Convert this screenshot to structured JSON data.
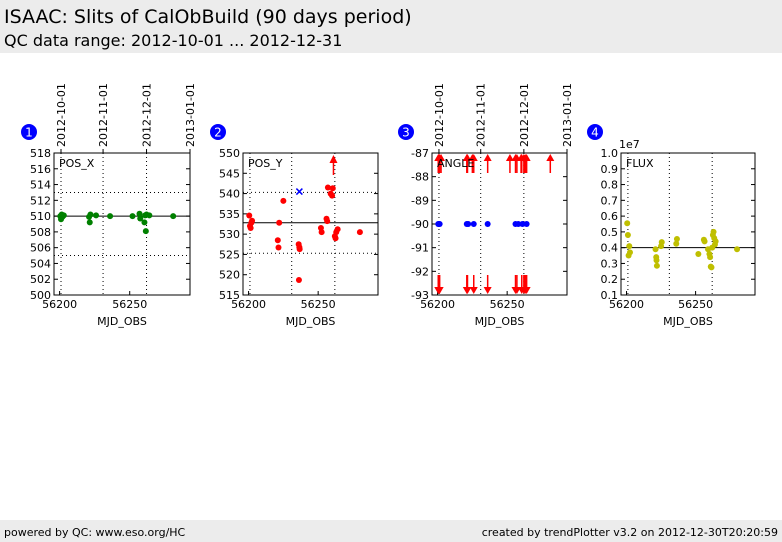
{
  "header": {
    "title": "ISAAC: Slits of CalObBuild (90 days period)",
    "subtitle": "QC data range: 2012-10-01 ... 2012-12-31"
  },
  "footer": {
    "left": "powered by QC: www.eso.org/HC",
    "right": "created by trendPlotter v3.2 on 2012-12-30T20:20:59"
  },
  "colors": {
    "pos_x": "#008000",
    "pos_y": "#ff0000",
    "angle": "#0000ff",
    "angle_limit": "#ff0000",
    "flux": "#bfbf00",
    "badge": "#0000ff",
    "header_bg": "#ececec"
  },
  "chart_data": [
    {
      "type": "scatter",
      "panel_number": "1",
      "label": "POS_X",
      "xlabel": "MJD_OBS",
      "xlim": [
        56196,
        56293
      ],
      "xticks": [
        "56200",
        "56250"
      ],
      "top_date_ticks": [
        {
          "x": 56201,
          "label": "2012-10-01"
        },
        {
          "x": 56231,
          "label": "2012-11-01"
        },
        {
          "x": 56262,
          "label": "2012-12-01"
        },
        {
          "x": 56293,
          "label": "2013-01-01"
        }
      ],
      "ylim": [
        500,
        518
      ],
      "yticks": [
        "500",
        "502",
        "504",
        "506",
        "508",
        "510",
        "512",
        "514",
        "516",
        "518"
      ],
      "reference_line": 510,
      "threshold_lines": [
        505,
        513
      ],
      "color": "#008000",
      "points": [
        [
          56200.5,
          510.0
        ],
        [
          56201,
          509.6
        ],
        [
          56201.5,
          510.2
        ],
        [
          56202,
          509.9
        ],
        [
          56203,
          510.1
        ],
        [
          56221,
          509.9
        ],
        [
          56221.5,
          509.2
        ],
        [
          56222,
          510.2
        ],
        [
          56226,
          510.1
        ],
        [
          56236,
          510.0
        ],
        [
          56252,
          510.0
        ],
        [
          56257,
          510.3
        ],
        [
          56257.5,
          509.7
        ],
        [
          56260.5,
          509.2
        ],
        [
          56261,
          510.1
        ],
        [
          56261.5,
          508.1
        ],
        [
          56262,
          510.2
        ],
        [
          56264,
          510.1
        ],
        [
          56281,
          510.0
        ]
      ]
    },
    {
      "type": "scatter",
      "panel_number": "2",
      "label": "POS_Y",
      "xlabel": "MJD_OBS",
      "xlim": [
        56196,
        56293
      ],
      "xticks": [
        "56200",
        "56250"
      ],
      "ylim": [
        515,
        550
      ],
      "yticks": [
        "515",
        "520",
        "525",
        "530",
        "535",
        "540",
        "545",
        "550"
      ],
      "reference_line": 532.8,
      "threshold_lines": [
        525.3,
        540.3
      ],
      "color": "#ff0000",
      "points": [
        [
          56200.5,
          534.6
        ],
        [
          56201,
          532.0
        ],
        [
          56201.5,
          531.5
        ],
        [
          56202,
          532.8
        ],
        [
          56202.5,
          533.3
        ],
        [
          56221,
          528.5
        ],
        [
          56221.5,
          526.7
        ],
        [
          56222,
          532.8
        ],
        [
          56225,
          538.2
        ],
        [
          56236,
          527.5
        ],
        [
          56236.5,
          526.8
        ],
        [
          56236.7,
          526.3
        ],
        [
          56236.2,
          518.7
        ],
        [
          56252,
          531.5
        ],
        [
          56252.5,
          530.5
        ],
        [
          56256,
          533.8
        ],
        [
          56256.5,
          533.2
        ],
        [
          56257,
          541.5
        ],
        [
          56259,
          540.0
        ],
        [
          56260,
          539.5
        ],
        [
          56260.5,
          541.3
        ],
        [
          56262,
          529.5
        ],
        [
          56262.5,
          529.0
        ],
        [
          56263,
          530.5
        ],
        [
          56264,
          531.2
        ],
        [
          56280,
          530.5
        ]
      ],
      "special_points": [
        {
          "x": 56236.5,
          "y": 540.5,
          "marker": "x",
          "color": "#0000ff"
        }
      ],
      "off_scale_markers": [
        {
          "x": 56261,
          "direction": "up"
        }
      ]
    },
    {
      "type": "scatter",
      "panel_number": "3",
      "label": "ANGLE",
      "xlabel": "MJD_OBS",
      "xlim": [
        56196,
        56293
      ],
      "xticks": [
        "56200",
        "56250"
      ],
      "top_date_ticks": [
        {
          "x": 56201,
          "label": "2012-10-01"
        },
        {
          "x": 56231,
          "label": "2012-11-01"
        },
        {
          "x": 56262,
          "label": "2012-12-01"
        },
        {
          "x": 56293,
          "label": "2013-01-01"
        }
      ],
      "ylim": [
        -93,
        -87
      ],
      "yticks": [
        "-93",
        "-92",
        "-91",
        "-90",
        "-89",
        "-88",
        "-87"
      ],
      "color": "#0000ff",
      "points": [
        [
          56200.5,
          -90.0
        ],
        [
          56201,
          -90.0
        ],
        [
          56201.5,
          -90.0
        ],
        [
          56221,
          -90.0
        ],
        [
          56222,
          -90.0
        ],
        [
          56226,
          -90.0
        ],
        [
          56236,
          -90.0
        ],
        [
          56256,
          -90.0
        ],
        [
          56258,
          -90.0
        ],
        [
          56261,
          -90.0
        ],
        [
          56264,
          -90.0
        ]
      ],
      "limit_arrows_top": [
        56200.5,
        56201,
        56201.5,
        56202.5,
        56221,
        56221.5,
        56225,
        56226,
        56236,
        56252,
        56256,
        56257,
        56260,
        56260.5,
        56262,
        56263,
        56264,
        56281
      ],
      "limit_arrows_bottom": [
        56200.5,
        56201,
        56201.5,
        56221,
        56221.5,
        56226,
        56236,
        56256,
        56257,
        56260.5,
        56262,
        56263,
        56264
      ]
    },
    {
      "type": "scatter",
      "panel_number": "4",
      "label": "FLUX",
      "xlabel": "MJD_OBS",
      "xlim": [
        56196,
        56293
      ],
      "xticks": [
        "56200",
        "56250"
      ],
      "ylim": [
        0.1,
        1.0
      ],
      "yticks": [
        "0.1",
        "0.2",
        "0.3",
        "0.4",
        "0.5",
        "0.6",
        "0.7",
        "0.8",
        "0.9",
        "1.0"
      ],
      "y_multiplier": "1e7",
      "reference_line": 0.4,
      "color": "#bfbf00",
      "points": [
        [
          56200.5,
          0.555
        ],
        [
          56201,
          0.48
        ],
        [
          56201.5,
          0.35
        ],
        [
          56202,
          0.41
        ],
        [
          56202.5,
          0.37
        ],
        [
          56221,
          0.39
        ],
        [
          56221.5,
          0.34
        ],
        [
          56221.7,
          0.32
        ],
        [
          56222,
          0.285
        ],
        [
          56225,
          0.41
        ],
        [
          56225.5,
          0.435
        ],
        [
          56236,
          0.425
        ],
        [
          56236.5,
          0.455
        ],
        [
          56252,
          0.36
        ],
        [
          56256,
          0.45
        ],
        [
          56256.5,
          0.44
        ],
        [
          56259,
          0.39
        ],
        [
          56260,
          0.36
        ],
        [
          56260.5,
          0.34
        ],
        [
          56261,
          0.28
        ],
        [
          56261.5,
          0.275
        ],
        [
          56262,
          0.4
        ],
        [
          56262.5,
          0.48
        ],
        [
          56263,
          0.5
        ],
        [
          56263.5,
          0.46
        ],
        [
          56264,
          0.42
        ],
        [
          56264.5,
          0.44
        ],
        [
          56280,
          0.39
        ]
      ]
    }
  ]
}
